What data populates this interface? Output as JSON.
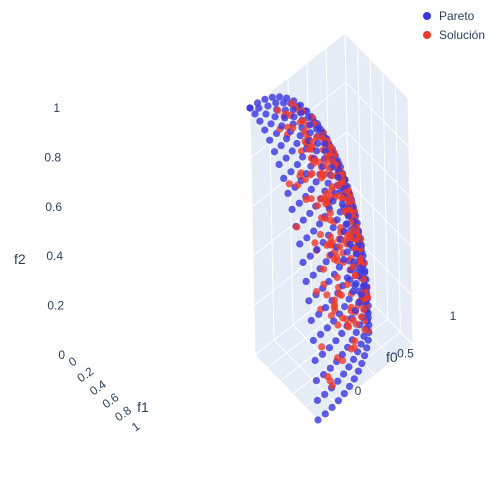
{
  "chart_data": {
    "type": "scatter",
    "subtype": "scatter3d",
    "title": "",
    "axes": {
      "x": {
        "label": "f0",
        "ticks": [
          "0",
          "0.5",
          "1"
        ],
        "range": [
          0,
          1
        ]
      },
      "y": {
        "label": "f1",
        "ticks": [
          "0",
          "0.2",
          "0.4",
          "0.6",
          "0.8",
          "1"
        ],
        "range": [
          0,
          1
        ]
      },
      "z": {
        "label": "f2",
        "ticks": [
          "0",
          "0.2",
          "0.4",
          "0.6",
          "0.8",
          "1"
        ],
        "range": [
          0,
          1
        ]
      }
    },
    "surface": "unit sphere octant: f0^2 + f1^2 + f2^2 = 1, f0,f1,f2 >= 0",
    "series": [
      {
        "name": "Pareto",
        "color": "#3a36e0",
        "sampling": "uniform grid over the sphere octant, about 400 points"
      },
      {
        "name": "Solución",
        "color": "#ef3b2c",
        "sampling": "about 250 points spread over the same sphere octant"
      }
    ],
    "legend": "top-right",
    "grid": true,
    "scene_background": "#e5ecf6"
  },
  "legend": {
    "items": [
      {
        "label": "Pareto",
        "color": "#3a36e0"
      },
      {
        "label": "Solución",
        "color": "#ef3b2c"
      }
    ]
  }
}
